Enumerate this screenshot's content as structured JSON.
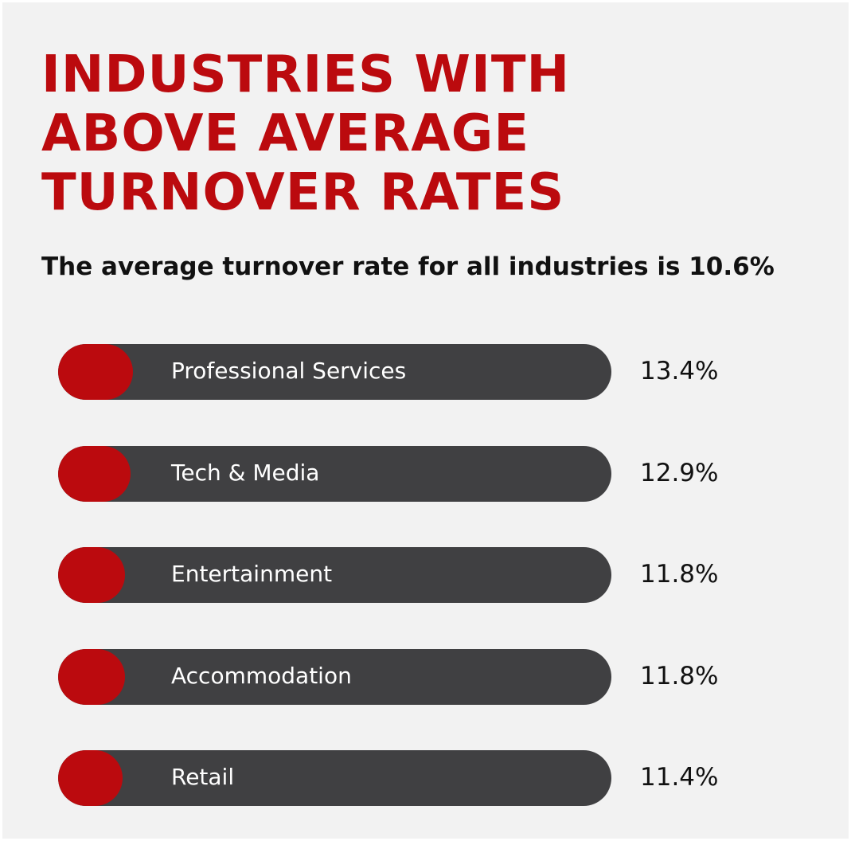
{
  "colors": {
    "background": "#f2f2f2",
    "title": "#bb0a0e",
    "bar_track": "#404042",
    "bar_fill": "#bb0a0e",
    "label_text": "#ffffff",
    "value_text": "#111111"
  },
  "chart_data": {
    "type": "bar",
    "orientation": "horizontal",
    "title_lines": [
      "INDUSTRIES WITH",
      "ABOVE AVERAGE",
      "TURNOVER RATES"
    ],
    "subtitle": "The average turnover rate for all industries is 10.6%",
    "categories": [
      "Professional Services",
      "Tech & Media",
      "Entertainment",
      "Accommodation",
      "Retail"
    ],
    "values": [
      13.4,
      12.9,
      11.8,
      11.8,
      11.4
    ],
    "value_labels": [
      "13.4%",
      "12.9%",
      "11.8%",
      "11.8%",
      "11.4%"
    ],
    "unit": "%",
    "xlim": [
      10.6,
      13.4
    ],
    "grid": false,
    "legend": "none"
  }
}
